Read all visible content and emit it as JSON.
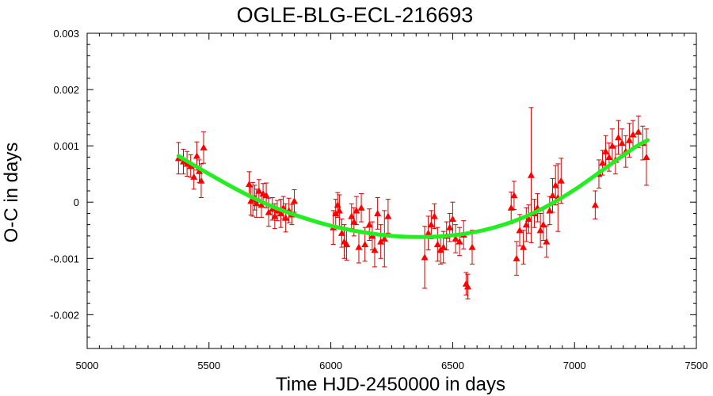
{
  "chart_data": {
    "type": "scatter",
    "title": "OGLE-BLG-ECL-216693",
    "xlabel": "Time HJD-2450000 in days",
    "ylabel": "O-C in days",
    "xlim": [
      5000,
      7500
    ],
    "ylim": [
      -0.0026,
      0.003
    ],
    "xticks": [
      5000,
      5500,
      6000,
      6500,
      7000,
      7500
    ],
    "xtick_labels": [
      "5000",
      "5500",
      "6000",
      "6500",
      "7000",
      "7500"
    ],
    "yticks": [
      0.003,
      0.002,
      0.001,
      0,
      -0.001,
      -0.002
    ],
    "ytick_labels": [
      "0.003",
      "0.002",
      "0.001",
      "0",
      "-0.001",
      "-0.002"
    ],
    "grid": false,
    "colors": {
      "points": "#ff0000",
      "error_bars": "#d40000",
      "fit": "#22ee22"
    },
    "series": [
      {
        "kind": "points_with_error_bars",
        "marker": "triangle",
        "points": [
          {
            "x": 5375,
            "y": 0.00078,
            "err": 0.00028
          },
          {
            "x": 5395,
            "y": 0.00072,
            "err": 0.00022
          },
          {
            "x": 5410,
            "y": 0.00068,
            "err": 0.00022
          },
          {
            "x": 5425,
            "y": 0.00064,
            "err": 0.0002
          },
          {
            "x": 5438,
            "y": 0.00045,
            "err": 0.00022
          },
          {
            "x": 5450,
            "y": 0.00082,
            "err": 0.00025
          },
          {
            "x": 5460,
            "y": 0.00055,
            "err": 0.0002
          },
          {
            "x": 5468,
            "y": 0.00038,
            "err": 0.0003
          },
          {
            "x": 5478,
            "y": 0.00097,
            "err": 0.00028
          },
          {
            "x": 5665,
            "y": 0.00032,
            "err": 0.00022
          },
          {
            "x": 5672,
            "y": 2e-05,
            "err": 0.00025
          },
          {
            "x": 5680,
            "y": 5e-05,
            "err": 0.0003
          },
          {
            "x": 5688,
            "y": 8e-05,
            "err": 0.00022
          },
          {
            "x": 5695,
            "y": -2e-05,
            "err": 0.00025
          },
          {
            "x": 5705,
            "y": 0.0002,
            "err": 0.0002
          },
          {
            "x": 5715,
            "y": -5e-05,
            "err": 0.00022
          },
          {
            "x": 5722,
            "y": 0.00015,
            "err": 0.00018
          },
          {
            "x": 5735,
            "y": 0.00012,
            "err": 0.00022
          },
          {
            "x": 5745,
            "y": -0.00018,
            "err": 0.00025
          },
          {
            "x": 5760,
            "y": -0.00012,
            "err": 0.0002
          },
          {
            "x": 5770,
            "y": -0.00025,
            "err": 0.00022
          },
          {
            "x": 5780,
            "y": -0.00015,
            "err": 0.00018
          },
          {
            "x": 5795,
            "y": -0.0002,
            "err": 0.00025
          },
          {
            "x": 5805,
            "y": -0.0001,
            "err": 0.0002
          },
          {
            "x": 5815,
            "y": -0.00028,
            "err": 0.00025
          },
          {
            "x": 5828,
            "y": -0.00015,
            "err": 0.00022
          },
          {
            "x": 5840,
            "y": -0.00022,
            "err": 0.00018
          },
          {
            "x": 5850,
            "y": 2e-05,
            "err": 0.0002
          },
          {
            "x": 6010,
            "y": -0.00045,
            "err": 0.0003
          },
          {
            "x": 6020,
            "y": -0.0002,
            "err": 0.00025
          },
          {
            "x": 6028,
            "y": -5e-05,
            "err": 0.00022
          },
          {
            "x": 6035,
            "y": -0.00015,
            "err": 0.00028
          },
          {
            "x": 6045,
            "y": -0.00055,
            "err": 0.00025
          },
          {
            "x": 6055,
            "y": -0.0007,
            "err": 0.0003
          },
          {
            "x": 6065,
            "y": -0.00075,
            "err": 0.00028
          },
          {
            "x": 6085,
            "y": -0.00025,
            "err": 0.00022
          },
          {
            "x": 6095,
            "y": -0.00035,
            "err": 0.00025
          },
          {
            "x": 6105,
            "y": -0.00015,
            "err": 0.00025
          },
          {
            "x": 6115,
            "y": -0.0008,
            "err": 0.00028
          },
          {
            "x": 6125,
            "y": -0.0001,
            "err": 0.00025
          },
          {
            "x": 6140,
            "y": -0.00075,
            "err": 0.0003
          },
          {
            "x": 6158,
            "y": -0.0004,
            "err": 0.00028
          },
          {
            "x": 6170,
            "y": -0.0006,
            "err": 0.00025
          },
          {
            "x": 6180,
            "y": -0.00085,
            "err": 0.0003
          },
          {
            "x": 6192,
            "y": -0.0002,
            "err": 0.00028
          },
          {
            "x": 6205,
            "y": -0.0007,
            "err": 0.0003
          },
          {
            "x": 6220,
            "y": -0.00065,
            "err": 0.0005
          },
          {
            "x": 6235,
            "y": -0.00025,
            "err": 0.0003
          },
          {
            "x": 6385,
            "y": -0.00098,
            "err": 0.00055
          },
          {
            "x": 6400,
            "y": -0.00055,
            "err": 0.0003
          },
          {
            "x": 6412,
            "y": -0.0004,
            "err": 0.00025
          },
          {
            "x": 6425,
            "y": -0.00025,
            "err": 0.00022
          },
          {
            "x": 6438,
            "y": -0.00075,
            "err": 0.0003
          },
          {
            "x": 6450,
            "y": -0.00085,
            "err": 0.00025
          },
          {
            "x": 6462,
            "y": -0.0008,
            "err": 0.00028
          },
          {
            "x": 6475,
            "y": -0.0006,
            "err": 0.00025
          },
          {
            "x": 6488,
            "y": -0.00045,
            "err": 0.00025
          },
          {
            "x": 6500,
            "y": -0.0003,
            "err": 0.0003
          },
          {
            "x": 6512,
            "y": -0.00065,
            "err": 0.00025
          },
          {
            "x": 6528,
            "y": -0.0007,
            "err": 0.00025
          },
          {
            "x": 6545,
            "y": -0.00058,
            "err": 0.00025
          },
          {
            "x": 6555,
            "y": -0.00145,
            "err": 0.0002
          },
          {
            "x": 6562,
            "y": -0.0015,
            "err": 0.00022
          },
          {
            "x": 6580,
            "y": -0.0008,
            "err": 0.0003
          },
          {
            "x": 6740,
            "y": -0.0001,
            "err": 0.00028
          },
          {
            "x": 6752,
            "y": 0.00012,
            "err": 0.00025
          },
          {
            "x": 6762,
            "y": -0.001,
            "err": 0.0003
          },
          {
            "x": 6775,
            "y": -0.0005,
            "err": 0.00028
          },
          {
            "x": 6790,
            "y": -0.0008,
            "err": 0.0003
          },
          {
            "x": 6802,
            "y": -0.0004,
            "err": 0.0003
          },
          {
            "x": 6812,
            "y": -0.0003,
            "err": 0.00025
          },
          {
            "x": 6822,
            "y": 0.00048,
            "err": 0.0012
          },
          {
            "x": 6835,
            "y": -0.0002,
            "err": 0.00025
          },
          {
            "x": 6848,
            "y": -0.0001,
            "err": 0.00025
          },
          {
            "x": 6860,
            "y": -0.0005,
            "err": 0.0003
          },
          {
            "x": 6872,
            "y": -0.0004,
            "err": 0.00028
          },
          {
            "x": 6885,
            "y": -0.0007,
            "err": 0.00028
          },
          {
            "x": 6898,
            "y": -0.00015,
            "err": 0.00025
          },
          {
            "x": 6910,
            "y": 0.00012,
            "err": 0.0003
          },
          {
            "x": 6922,
            "y": 0.0003,
            "err": 0.00035
          },
          {
            "x": 6932,
            "y": 8e-05,
            "err": 0.0006
          },
          {
            "x": 6945,
            "y": 0.00038,
            "err": 0.0004
          },
          {
            "x": 7085,
            "y": -5e-05,
            "err": 0.00025
          },
          {
            "x": 7100,
            "y": 0.0005,
            "err": 0.00025
          },
          {
            "x": 7115,
            "y": 0.0007,
            "err": 0.00022
          },
          {
            "x": 7128,
            "y": 0.0009,
            "err": 0.00028
          },
          {
            "x": 7142,
            "y": 0.0008,
            "err": 0.00025
          },
          {
            "x": 7155,
            "y": 0.001,
            "err": 0.0003
          },
          {
            "x": 7168,
            "y": 0.00075,
            "err": 0.00025
          },
          {
            "x": 7180,
            "y": 0.00115,
            "err": 0.0003
          },
          {
            "x": 7195,
            "y": 0.00105,
            "err": 0.00025
          },
          {
            "x": 7210,
            "y": 0.0009,
            "err": 0.00028
          },
          {
            "x": 7225,
            "y": 0.0011,
            "err": 0.0003
          },
          {
            "x": 7240,
            "y": 0.0012,
            "err": 0.00025
          },
          {
            "x": 7262,
            "y": 0.00125,
            "err": 0.00028
          },
          {
            "x": 7280,
            "y": 0.00105,
            "err": 0.0003
          },
          {
            "x": 7295,
            "y": 0.0008,
            "err": 0.0005
          }
        ]
      },
      {
        "kind": "fit_curve",
        "x": [
          5375,
          5500,
          5625,
          5750,
          5875,
          6000,
          6125,
          6250,
          6375,
          6500,
          6625,
          6750,
          6875,
          7000,
          7125,
          7250,
          7300
        ],
        "y": [
          0.00082,
          0.0005,
          0.0002,
          -6e-05,
          -0.00026,
          -0.00042,
          -0.00053,
          -0.0006,
          -0.00062,
          -0.00059,
          -0.0005,
          -0.00034,
          -0.0001,
          0.00022,
          0.0006,
          0.00098,
          0.0011
        ]
      }
    ]
  }
}
